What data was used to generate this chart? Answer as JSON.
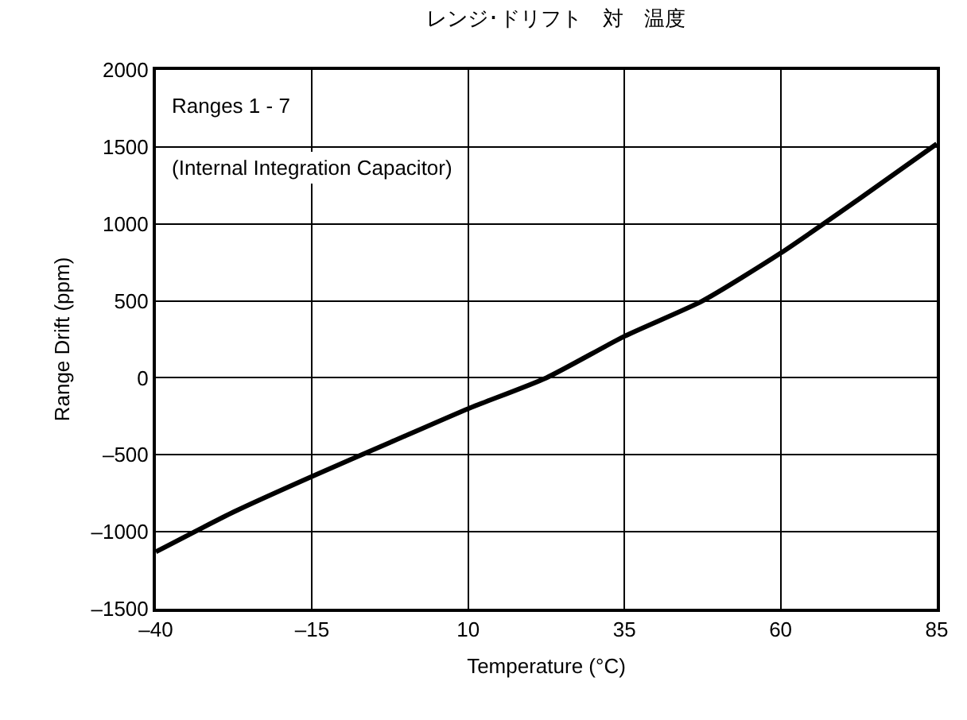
{
  "chart_data": {
    "type": "line",
    "title": "レンジ･ドリフト　対　温度",
    "xlabel": "Temperature (°C)",
    "ylabel": "Range Drift (ppm)",
    "annotations": [
      "Ranges 1 - 7",
      "(Internal Integration Capacitor)"
    ],
    "x": [
      -40,
      -27.5,
      -15,
      -2.5,
      10,
      22.5,
      35,
      47.5,
      60,
      72.5,
      85
    ],
    "series": [
      {
        "color": "#000000",
        "values": [
          -1130,
          -870,
          -640,
          -420,
          -200,
          0,
          270,
          500,
          810,
          1160,
          1520
        ]
      }
    ],
    "xlim": [
      -40,
      85
    ],
    "xticks": [
      {
        "value": -40,
        "label": "–40"
      },
      {
        "value": -15,
        "label": "–15"
      },
      10,
      35,
      60,
      85
    ],
    "ylim": [
      -1500,
      2000
    ],
    "yticks": [
      {
        "value": -1500,
        "label": "–1500"
      },
      {
        "value": -1000,
        "label": "–1000"
      },
      {
        "value": -500,
        "label": "–500"
      },
      0,
      500,
      1000,
      1500,
      2000
    ],
    "grid": true,
    "marker": "none",
    "line_style": "solid"
  }
}
